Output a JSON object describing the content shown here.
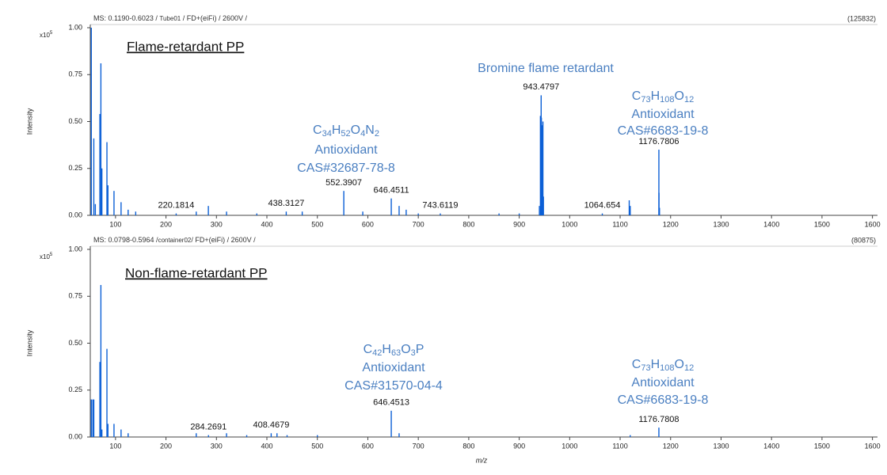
{
  "chart_data": [
    {
      "type": "stick",
      "title": "Flame-retardant PP",
      "header": [
        "MS: 0.1190-0.6023 / ",
        "Tube01",
        " / FD+(eiFi) / 2600V /"
      ],
      "max_intensity": "(125832)",
      "y_label": "Intensity",
      "y_multiplier": {
        "base": "x10",
        "exponent": 5
      },
      "color": "#0b5fd6",
      "annotation_color": "#4a7fc1",
      "xlim": [
        50,
        1610
      ],
      "xticks": [
        100,
        200,
        300,
        400,
        500,
        600,
        700,
        800,
        900,
        1000,
        1100,
        1200,
        1300,
        1400,
        1500,
        1600
      ],
      "ylim": [
        0,
        1.0
      ],
      "yticks": [
        {
          "value": 0,
          "label": "0.00"
        },
        {
          "value": 0.25,
          "label": "0.25"
        },
        {
          "value": 0.5,
          "label": "0.50"
        },
        {
          "value": 0.75,
          "label": "0.75"
        },
        {
          "value": 1.0,
          "label": "1.00"
        }
      ],
      "peaks": {
        "x": [
          52,
          57,
          60,
          69,
          71,
          73,
          83,
          85,
          97,
          111,
          125,
          140,
          260,
          284,
          320,
          380,
          470,
          590,
          662,
          676,
          700,
          860,
          900,
          940,
          942,
          944,
          945,
          946,
          947,
          948,
          1118,
          1120,
          1177,
          1178
        ],
        "values": [
          1.0,
          0.41,
          0.06,
          0.54,
          0.81,
          0.25,
          0.39,
          0.16,
          0.13,
          0.07,
          0.03,
          0.02,
          0.02,
          0.05,
          0.02,
          0.01,
          0.02,
          0.02,
          0.05,
          0.03,
          0.01,
          0.01,
          0.01,
          0.05,
          0.53,
          0.52,
          0.48,
          0.12,
          0.5,
          0.1,
          0.08,
          0.05,
          0.12,
          0.04
        ]
      },
      "labeled_peaks": {
        "x": [
          220.1814,
          438.3127,
          552.3907,
          646.4511,
          743.6119,
          943.4797,
          1064.654,
          1176.7806
        ],
        "values": [
          0.01,
          0.02,
          0.13,
          0.09,
          0.01,
          0.64,
          0.01,
          0.35
        ]
      },
      "annotations": [
        {
          "lines": [
            "Bromine flame retardant"
          ]
        },
        {
          "formula": [
            "C",
            "34",
            "H",
            "52",
            "O",
            "4",
            "N",
            "2"
          ],
          "lines": [
            "Antioxidant",
            "CAS#32687-78-8"
          ]
        },
        {
          "formula": [
            "C",
            "73",
            "H",
            "108",
            "O",
            "12"
          ],
          "lines": [
            "Antioxidant",
            "CAS#6683-19-8"
          ]
        }
      ]
    },
    {
      "type": "stick",
      "title": "Non-flame-retardant PP",
      "header": [
        "MS: 0.0798-0.5964 /",
        "container02",
        "/ FD+(eiFi) / 2600V /"
      ],
      "max_intensity": "(80875)",
      "y_label": "Intensity",
      "x_label": "m/z",
      "y_multiplier": {
        "base": "x10",
        "exponent": 5
      },
      "color": "#0b5fd6",
      "annotation_color": "#4a7fc1",
      "xlim": [
        50,
        1610
      ],
      "xticks": [
        100,
        200,
        300,
        400,
        500,
        600,
        700,
        800,
        900,
        1000,
        1100,
        1200,
        1300,
        1400,
        1500,
        1600
      ],
      "ylim": [
        0,
        1.0
      ],
      "yticks": [
        {
          "value": 0,
          "label": "0.00"
        },
        {
          "value": 0.25,
          "label": "0.25"
        },
        {
          "value": 0.5,
          "label": "0.50"
        },
        {
          "value": 0.75,
          "label": "0.75"
        },
        {
          "value": 1.0,
          "label": "1.00"
        }
      ],
      "peaks": {
        "x": [
          52,
          55,
          57,
          69,
          71,
          73,
          83,
          85,
          97,
          111,
          125,
          260,
          320,
          360,
          420,
          440,
          500,
          662,
          1120
        ],
        "values": [
          0.2,
          0.2,
          0.2,
          0.4,
          0.81,
          0.04,
          0.47,
          0.07,
          0.07,
          0.04,
          0.02,
          0.02,
          0.02,
          0.01,
          0.02,
          0.01,
          0.01,
          0.02,
          0.01
        ]
      },
      "labeled_peaks": {
        "x": [
          284.2691,
          408.4679,
          646.4513,
          1176.7808
        ],
        "values": [
          0.01,
          0.02,
          0.14,
          0.05
        ]
      },
      "annotations": [
        {
          "formula": [
            "C",
            "42",
            "H",
            "63",
            "O",
            "3",
            "P"
          ],
          "lines": [
            "Antioxidant",
            "CAS#31570-04-4"
          ]
        },
        {
          "formula": [
            "C",
            "73",
            "H",
            "108",
            "O",
            "12"
          ],
          "lines": [
            "Antioxidant",
            "CAS#6683-19-8"
          ]
        }
      ]
    }
  ]
}
